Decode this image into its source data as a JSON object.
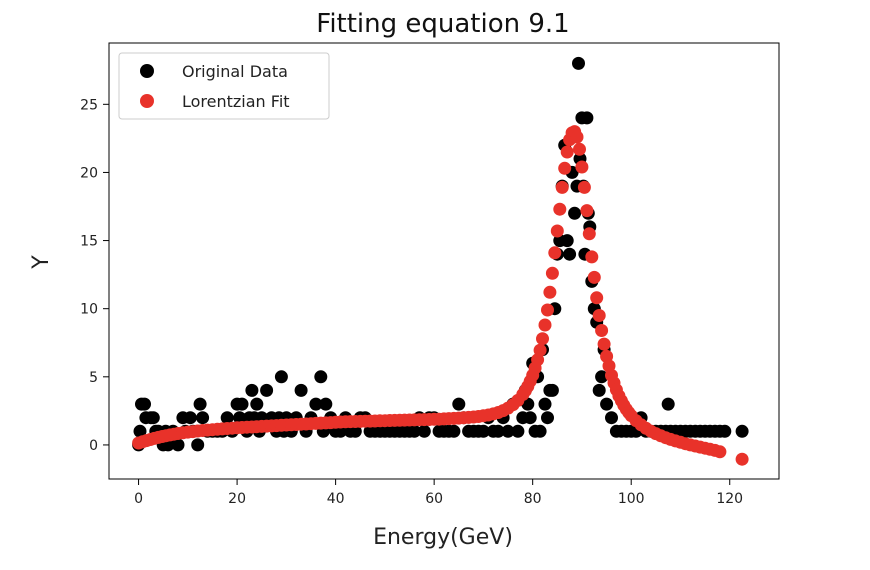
{
  "chart_data": {
    "type": "scatter",
    "title": "Fitting equation 9.1",
    "xlabel": "Energy(GeV)",
    "ylabel": "Y",
    "xlim": [
      -6,
      130
    ],
    "ylim": [
      -2.5,
      29.5
    ],
    "xticks": [
      0,
      20,
      40,
      60,
      80,
      100,
      120
    ],
    "yticks": [
      0,
      5,
      10,
      15,
      20,
      25
    ],
    "grid": false,
    "legend_position": "top-left",
    "series": [
      {
        "name": "Original Data",
        "color": "#000000",
        "points": [
          [
            0,
            0
          ],
          [
            0.3,
            1
          ],
          [
            0.6,
            3
          ],
          [
            1.2,
            3
          ],
          [
            1.5,
            2
          ],
          [
            2.5,
            2
          ],
          [
            3,
            2
          ],
          [
            3.5,
            1
          ],
          [
            4,
            1
          ],
          [
            5,
            0
          ],
          [
            5.5,
            1
          ],
          [
            6,
            0
          ],
          [
            7,
            1
          ],
          [
            8,
            0
          ],
          [
            9,
            2
          ],
          [
            9.5,
            1
          ],
          [
            10.5,
            2
          ],
          [
            11,
            1
          ],
          [
            12,
            0
          ],
          [
            12.5,
            3
          ],
          [
            13,
            2
          ],
          [
            14,
            1
          ],
          [
            15,
            1
          ],
          [
            16,
            1
          ],
          [
            17,
            1
          ],
          [
            18,
            2
          ],
          [
            19,
            1
          ],
          [
            20,
            3
          ],
          [
            20.5,
            2
          ],
          [
            21,
            3
          ],
          [
            22,
            1
          ],
          [
            22.5,
            2
          ],
          [
            23,
            4
          ],
          [
            23.5,
            2
          ],
          [
            24,
            3
          ],
          [
            24.5,
            1
          ],
          [
            25,
            2
          ],
          [
            26,
            4
          ],
          [
            27,
            2
          ],
          [
            28,
            1
          ],
          [
            28.5,
            2
          ],
          [
            29,
            5
          ],
          [
            29.5,
            1
          ],
          [
            30,
            2
          ],
          [
            31,
            1
          ],
          [
            32,
            2
          ],
          [
            33,
            4
          ],
          [
            34,
            1
          ],
          [
            35,
            2
          ],
          [
            36,
            3
          ],
          [
            37,
            5
          ],
          [
            37.5,
            1
          ],
          [
            38,
            3
          ],
          [
            39,
            2
          ],
          [
            40,
            1
          ],
          [
            41,
            1
          ],
          [
            42,
            2
          ],
          [
            43,
            1
          ],
          [
            44,
            1
          ],
          [
            45,
            2
          ],
          [
            46,
            2
          ],
          [
            47,
            1
          ],
          [
            48,
            1
          ],
          [
            49,
            1
          ],
          [
            50,
            1
          ],
          [
            51,
            1
          ],
          [
            52,
            1
          ],
          [
            53,
            1
          ],
          [
            54,
            1
          ],
          [
            55,
            1
          ],
          [
            56,
            1
          ],
          [
            57,
            2
          ],
          [
            58,
            1
          ],
          [
            59,
            2
          ],
          [
            60,
            2
          ],
          [
            61,
            1
          ],
          [
            62,
            1
          ],
          [
            63,
            1
          ],
          [
            64,
            1
          ],
          [
            65,
            3
          ],
          [
            66,
            2
          ],
          [
            67,
            1
          ],
          [
            68,
            1
          ],
          [
            69,
            1
          ],
          [
            70,
            1
          ],
          [
            71,
            2
          ],
          [
            72,
            1
          ],
          [
            73,
            1
          ],
          [
            74,
            2
          ],
          [
            75,
            1
          ],
          [
            76,
            3
          ],
          [
            77,
            1
          ],
          [
            78,
            2
          ],
          [
            78.5,
            4
          ],
          [
            79,
            3
          ],
          [
            79.5,
            2
          ],
          [
            80,
            6
          ],
          [
            80.5,
            1
          ],
          [
            81,
            5
          ],
          [
            81.5,
            1
          ],
          [
            82,
            7
          ],
          [
            82.5,
            3
          ],
          [
            83,
            2
          ],
          [
            83.5,
            4
          ],
          [
            84,
            4
          ],
          [
            84.5,
            10
          ],
          [
            85,
            14
          ],
          [
            85.5,
            15
          ],
          [
            86,
            19
          ],
          [
            86.5,
            22
          ],
          [
            87,
            15
          ],
          [
            87.5,
            14
          ],
          [
            88,
            20
          ],
          [
            88.5,
            17
          ],
          [
            89,
            19
          ],
          [
            89.3,
            28
          ],
          [
            89.6,
            21
          ],
          [
            90,
            24
          ],
          [
            90.3,
            19
          ],
          [
            90.6,
            14
          ],
          [
            91,
            24
          ],
          [
            91.3,
            17
          ],
          [
            91.6,
            16
          ],
          [
            92,
            12
          ],
          [
            92.5,
            10
          ],
          [
            93,
            9
          ],
          [
            93.5,
            4
          ],
          [
            94,
            5
          ],
          [
            94.5,
            7
          ],
          [
            95,
            3
          ],
          [
            96,
            2
          ],
          [
            97,
            1
          ],
          [
            98,
            1
          ],
          [
            99,
            1
          ],
          [
            100,
            1
          ],
          [
            101,
            1
          ],
          [
            102,
            2
          ],
          [
            103,
            1
          ],
          [
            104,
            1
          ],
          [
            105,
            1
          ],
          [
            106,
            1
          ],
          [
            107,
            1
          ],
          [
            107.5,
            3
          ],
          [
            108,
            1
          ],
          [
            109,
            1
          ],
          [
            110,
            1
          ],
          [
            111,
            1
          ],
          [
            112,
            1
          ],
          [
            113,
            1
          ],
          [
            114,
            1
          ],
          [
            115,
            1
          ],
          [
            116,
            1
          ],
          [
            117,
            1
          ],
          [
            118,
            1
          ],
          [
            119,
            1
          ],
          [
            122.5,
            1
          ]
        ]
      },
      {
        "name": "Lorentzian Fit",
        "color": "#e8322a",
        "points": [
          [
            0,
            0.14
          ],
          [
            0.8,
            0.23
          ],
          [
            1.6,
            0.32
          ],
          [
            2.4,
            0.4
          ],
          [
            3.2,
            0.48
          ],
          [
            4,
            0.55
          ],
          [
            4.8,
            0.62
          ],
          [
            5.6,
            0.68
          ],
          [
            6.4,
            0.74
          ],
          [
            7.2,
            0.79
          ],
          [
            8,
            0.84
          ],
          [
            9,
            0.89
          ],
          [
            10,
            0.94
          ],
          [
            11,
            0.98
          ],
          [
            12,
            1.02
          ],
          [
            13,
            1.06
          ],
          [
            14,
            1.09
          ],
          [
            15,
            1.12
          ],
          [
            16,
            1.15
          ],
          [
            17,
            1.18
          ],
          [
            18,
            1.21
          ],
          [
            19,
            1.23
          ],
          [
            20,
            1.26
          ],
          [
            21,
            1.28
          ],
          [
            22,
            1.3
          ],
          [
            23,
            1.32
          ],
          [
            24,
            1.34
          ],
          [
            25,
            1.36
          ],
          [
            26,
            1.38
          ],
          [
            27,
            1.4
          ],
          [
            28,
            1.42
          ],
          [
            29,
            1.44
          ],
          [
            30,
            1.46
          ],
          [
            31,
            1.48
          ],
          [
            32,
            1.5
          ],
          [
            33,
            1.52
          ],
          [
            34,
            1.54
          ],
          [
            35,
            1.56
          ],
          [
            36,
            1.58
          ],
          [
            37,
            1.6
          ],
          [
            38,
            1.62
          ],
          [
            39,
            1.64
          ],
          [
            40,
            1.66
          ],
          [
            41,
            1.68
          ],
          [
            42,
            1.7
          ],
          [
            43,
            1.71
          ],
          [
            44,
            1.72
          ],
          [
            45,
            1.73
          ],
          [
            46,
            1.74
          ],
          [
            47,
            1.75
          ],
          [
            48,
            1.76
          ],
          [
            49,
            1.77
          ],
          [
            50,
            1.78
          ],
          [
            51,
            1.79
          ],
          [
            52,
            1.8
          ],
          [
            53,
            1.81
          ],
          [
            54,
            1.82
          ],
          [
            55,
            1.83
          ],
          [
            56,
            1.84
          ],
          [
            57,
            1.85
          ],
          [
            58,
            1.86
          ],
          [
            59,
            1.87
          ],
          [
            60,
            1.88
          ],
          [
            61,
            1.89
          ],
          [
            62,
            1.91
          ],
          [
            63,
            1.93
          ],
          [
            64,
            1.95
          ],
          [
            65,
            1.97
          ],
          [
            66,
            1.99
          ],
          [
            67,
            2.02
          ],
          [
            68,
            2.05
          ],
          [
            69,
            2.09
          ],
          [
            70,
            2.14
          ],
          [
            71,
            2.2
          ],
          [
            72,
            2.28
          ],
          [
            73,
            2.38
          ],
          [
            74,
            2.52
          ],
          [
            75,
            2.7
          ],
          [
            76,
            2.95
          ],
          [
            77,
            3.27
          ],
          [
            78,
            3.7
          ],
          [
            78.5,
            3.98
          ],
          [
            79,
            4.3
          ],
          [
            79.5,
            4.68
          ],
          [
            80,
            5.12
          ],
          [
            80.5,
            5.65
          ],
          [
            81,
            6.25
          ],
          [
            81.5,
            6.95
          ],
          [
            82,
            7.8
          ],
          [
            82.5,
            8.8
          ],
          [
            83,
            9.9
          ],
          [
            83.5,
            11.2
          ],
          [
            84,
            12.6
          ],
          [
            84.5,
            14.1
          ],
          [
            85,
            15.7
          ],
          [
            85.5,
            17.3
          ],
          [
            86,
            18.9
          ],
          [
            86.5,
            20.3
          ],
          [
            87,
            21.5
          ],
          [
            87.5,
            22.4
          ],
          [
            88,
            22.9
          ],
          [
            88.5,
            23
          ],
          [
            89,
            22.6
          ],
          [
            89.5,
            21.7
          ],
          [
            90,
            20.4
          ],
          [
            90.5,
            18.9
          ],
          [
            91,
            17.2
          ],
          [
            91.5,
            15.5
          ],
          [
            92,
            13.8
          ],
          [
            92.5,
            12.3
          ],
          [
            93,
            10.8
          ],
          [
            93.5,
            9.5
          ],
          [
            94,
            8.4
          ],
          [
            94.5,
            7.4
          ],
          [
            95,
            6.5
          ],
          [
            95.5,
            5.8
          ],
          [
            96,
            5.1
          ],
          [
            96.5,
            4.55
          ],
          [
            97,
            4.05
          ],
          [
            97.5,
            3.6
          ],
          [
            98,
            3.25
          ],
          [
            98.5,
            2.92
          ],
          [
            99,
            2.62
          ],
          [
            99.5,
            2.38
          ],
          [
            100,
            2.15
          ],
          [
            101,
            1.78
          ],
          [
            102,
            1.48
          ],
          [
            103,
            1.22
          ],
          [
            104,
            1.01
          ],
          [
            105,
            0.83
          ],
          [
            106,
            0.67
          ],
          [
            107,
            0.53
          ],
          [
            108,
            0.41
          ],
          [
            109,
            0.3
          ],
          [
            110,
            0.19
          ],
          [
            111,
            0.09
          ],
          [
            112,
            0
          ],
          [
            113,
            -0.08
          ],
          [
            114,
            -0.16
          ],
          [
            115,
            -0.24
          ],
          [
            116,
            -0.32
          ],
          [
            117,
            -0.4
          ],
          [
            118,
            -0.5
          ],
          [
            122.5,
            -1.05
          ]
        ]
      }
    ]
  }
}
